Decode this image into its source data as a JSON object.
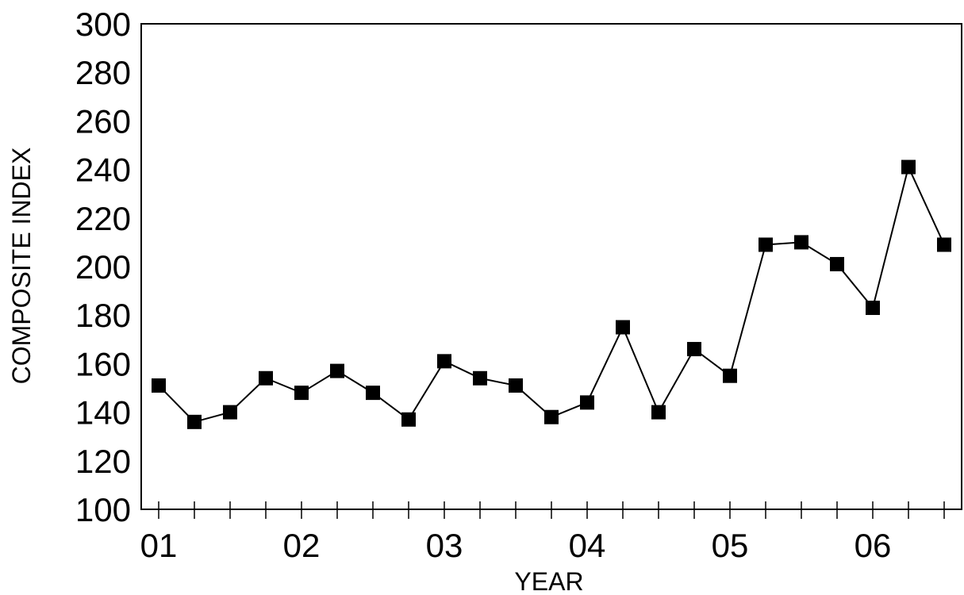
{
  "chart_data": {
    "type": "line",
    "title": "",
    "xlabel": "YEAR",
    "ylabel": "COMPOSITE INDEX",
    "ylim": [
      100,
      300
    ],
    "y_ticks": [
      100,
      120,
      140,
      160,
      180,
      200,
      220,
      240,
      260,
      280,
      300
    ],
    "x_tick_labels": [
      "01",
      "02",
      "03",
      "04",
      "05",
      "06"
    ],
    "x_tick_label_positions": [
      0,
      4,
      8,
      12,
      16,
      20
    ],
    "minor_ticks_per_year": 4,
    "grid": false,
    "marker": "square",
    "line_color": "#000000",
    "series": [
      {
        "values": [
          151,
          136,
          140,
          154,
          148,
          157,
          148,
          137,
          161,
          154,
          151,
          138,
          144,
          175,
          140,
          166,
          155,
          209,
          210,
          201,
          183,
          241,
          209
        ]
      }
    ]
  }
}
